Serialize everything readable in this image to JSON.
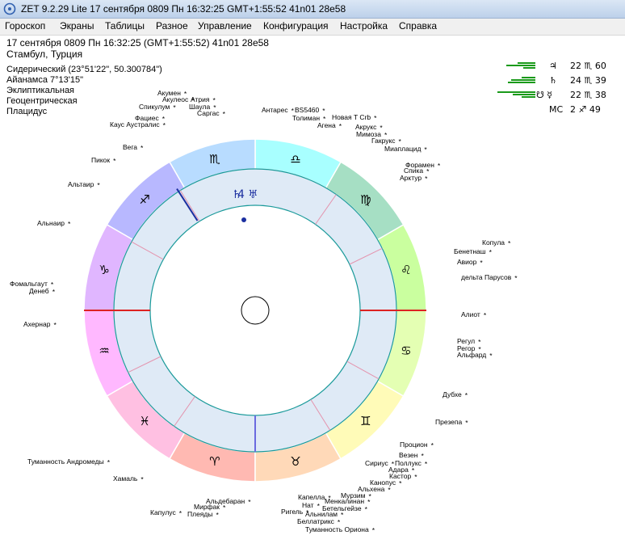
{
  "window": {
    "title": "ZET 9.2.29 Lite   17 сентября 0809  Пн  16:32:25 GMT+1:55:52 41n01  28e58"
  },
  "menu": [
    "Гороскоп",
    "Экраны",
    "Таблицы",
    "Разное",
    "Управление",
    "Конфигурация",
    "Настройка",
    "Справка"
  ],
  "header": {
    "line1": "17 сентября 0809  Пн  16:32:25 (GMT+1:55:52) 41n01  28e58",
    "line2": "Стамбул, Турция"
  },
  "settings": [
    "Сидерический (23°51'22\", 50.300784\")",
    "Айанамса 7°13'15\"",
    "Эклиптикальная",
    "Геоцентрическая",
    "Плацидус"
  ],
  "planets": [
    {
      "glyph": "♃",
      "text": "22 ♏ 60",
      "strength": [
        0.4,
        0.65,
        0.28
      ]
    },
    {
      "glyph": "♄",
      "text": "24 ♏ 39",
      "strength": [
        0.3,
        0.55,
        0.62
      ]
    },
    {
      "glyph": "☋ ☿",
      "text": "22 ♏ 38",
      "strength": [
        0.85,
        0.5,
        0.3
      ]
    },
    {
      "glyph": "MC",
      "text": "2 ♐ 49",
      "strength": []
    }
  ],
  "wheel": {
    "asc_longitude": 300,
    "signs": [
      {
        "glyph": "♈",
        "color": "#ffb9b2"
      },
      {
        "glyph": "♉",
        "color": "#ffd9b8"
      },
      {
        "glyph": "♊",
        "color": "#fffbb8"
      },
      {
        "glyph": "♋",
        "color": "#e4ffb3"
      },
      {
        "glyph": "♌",
        "color": "#caff9f"
      },
      {
        "glyph": "♍",
        "color": "#a6dfc4"
      },
      {
        "glyph": "♎",
        "color": "#a8ffff"
      },
      {
        "glyph": "♏",
        "color": "#b8dcff"
      },
      {
        "glyph": "♐",
        "color": "#b8b8ff"
      },
      {
        "glyph": "♑",
        "color": "#e0b6ff"
      },
      {
        "glyph": "♒",
        "color": "#ffb8ff"
      },
      {
        "glyph": "♓",
        "color": "#ffc0e2"
      }
    ],
    "house_cusps": [
      300,
      326,
      355,
      30,
      62,
      91,
      120,
      146,
      175,
      210,
      242,
      271
    ],
    "in_chart_planets": {
      "saturn": "♄",
      "jupiter": "4",
      "uranus": "♅"
    }
  },
  "stars": [
    {
      "name": "Акумен",
      "side": "r"
    },
    {
      "name": "Акулеос",
      "side": "r"
    },
    {
      "name": "Атрия",
      "side": "r"
    },
    {
      "name": "Спикулум",
      "side": "r"
    },
    {
      "name": "Шаула",
      "side": "r"
    },
    {
      "name": "Фациес",
      "side": "r"
    },
    {
      "name": "Саргас",
      "side": "r"
    },
    {
      "name": "Каус Аустралис",
      "side": "r"
    },
    {
      "name": "Антарес",
      "side": "r"
    },
    {
      "name": "BS5460",
      "side": "r"
    },
    {
      "name": "Толиман",
      "side": "r"
    },
    {
      "name": "Новая T Crb",
      "side": "r"
    },
    {
      "name": "Агена",
      "side": "r"
    },
    {
      "name": "Акрукс",
      "side": "r"
    },
    {
      "name": "Мимоза",
      "side": "r"
    },
    {
      "name": "Гакрукс",
      "side": "r"
    },
    {
      "name": "Миаплацид",
      "side": "r"
    },
    {
      "name": "Вега",
      "side": "r"
    },
    {
      "name": "Пикок",
      "side": "r"
    },
    {
      "name": "Форамен",
      "side": "r"
    },
    {
      "name": "Спика",
      "side": "r"
    },
    {
      "name": "Арктур",
      "side": "r"
    },
    {
      "name": "Альтаир",
      "side": "r"
    },
    {
      "name": "Копула",
      "side": "r"
    },
    {
      "name": "Бенетнаш",
      "side": "r"
    },
    {
      "name": "Авиор",
      "side": "r"
    },
    {
      "name": "Альнаир",
      "side": "r"
    },
    {
      "name": "дельта Парусов",
      "side": "r"
    },
    {
      "name": "Фомальгаут",
      "side": "r"
    },
    {
      "name": "Денеб",
      "side": "r"
    },
    {
      "name": "Алиот",
      "side": "r"
    },
    {
      "name": "Ахернар",
      "side": "r"
    },
    {
      "name": "Регул",
      "side": "r"
    },
    {
      "name": "Регор",
      "side": "r"
    },
    {
      "name": "Альфард",
      "side": "r"
    },
    {
      "name": "Дубхе",
      "side": "r"
    },
    {
      "name": "Презепа",
      "side": "r"
    },
    {
      "name": "Процион",
      "side": "r"
    },
    {
      "name": "Везен",
      "side": "r"
    },
    {
      "name": "Сириус",
      "side": "r"
    },
    {
      "name": "Поллукс",
      "side": "r"
    },
    {
      "name": "Туманность Андромеды",
      "side": "r"
    },
    {
      "name": "Адара",
      "side": "r"
    },
    {
      "name": "Кастор",
      "side": "r"
    },
    {
      "name": "Хамаль",
      "side": "r"
    },
    {
      "name": "Канопус",
      "side": "r"
    },
    {
      "name": "Альхена",
      "side": "r"
    },
    {
      "name": "Мурзим",
      "side": "r"
    },
    {
      "name": "Альдебаран",
      "side": "r"
    },
    {
      "name": "Капелла",
      "side": "r"
    },
    {
      "name": "Менкалинан",
      "side": "r"
    },
    {
      "name": "Мирфак",
      "side": "r"
    },
    {
      "name": "Нат",
      "side": "r"
    },
    {
      "name": "Бетельгейзе",
      "side": "r"
    },
    {
      "name": "Капулус",
      "side": "r"
    },
    {
      "name": "Плеяды",
      "side": "r"
    },
    {
      "name": "Ригель",
      "side": "r"
    },
    {
      "name": "Альнилам",
      "side": "r"
    },
    {
      "name": "Беллатрикс",
      "side": "r"
    },
    {
      "name": "Туманность Ориона",
      "side": "r"
    }
  ]
}
